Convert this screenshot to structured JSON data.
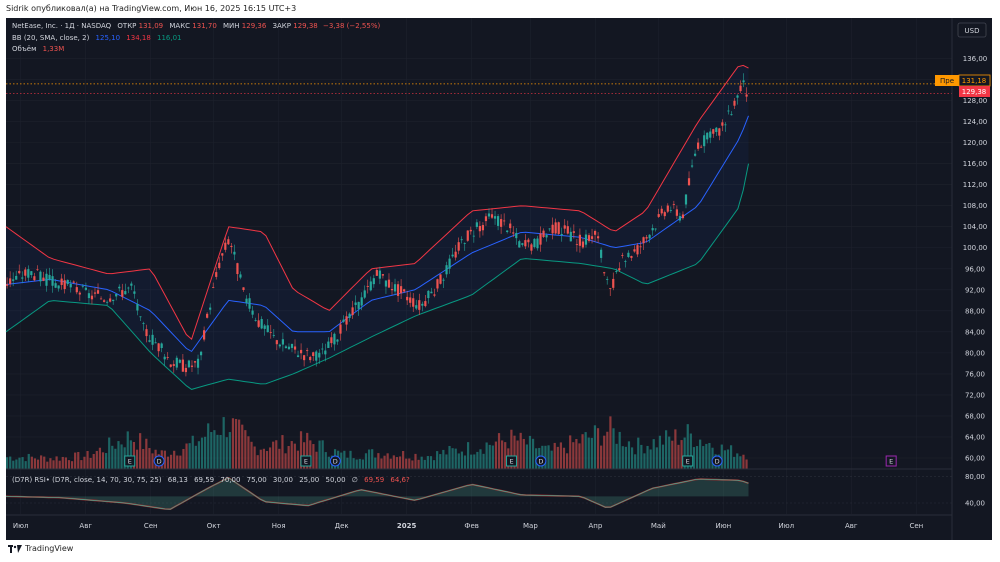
{
  "header": {
    "text": "Sidrik опубликовал(а) на TradingView.com, Июн 16, 2025 16:15 UTC+3"
  },
  "footer": {
    "brand": "TradingView"
  },
  "currency": "USD",
  "legend": {
    "symbol": "NetEase, Inc. · 1Д · NASDAQ",
    "open_label": "ОТКР",
    "open": "131,09",
    "high_label": "МАКС",
    "high": "131,70",
    "low_label": "МИН",
    "low": "129,36",
    "close_label": "ЗАКР",
    "close": "129,38",
    "change": "−3,38 (−2,55%)",
    "bb_label": "BB (20, SMA, close, 2)",
    "bb_basis": "125,10",
    "bb_upper": "134,18",
    "bb_lower": "116,01",
    "volume_label": "Объём",
    "volume": "1,33M",
    "rsi_label": "(D7R) RSI• (D7R, close, 14, 70, 30, 75, 25)",
    "rsi_values": [
      "68,13",
      "69,59",
      "70,00",
      "75,00",
      "30,00",
      "25,00",
      "50,00",
      "∅",
      "69,59",
      "64,6?"
    ]
  },
  "price_tags": {
    "pre_label": "Пре",
    "pre_price": "131,18",
    "last_price": "129,38"
  },
  "event_markers": [
    {
      "label": "E",
      "date": "2024-08-22"
    },
    {
      "label": "D",
      "date": "2024-09-05"
    },
    {
      "label": "E",
      "date": "2024-11-14"
    },
    {
      "label": "D",
      "date": "2024-11-28"
    },
    {
      "label": "E",
      "date": "2025-02-20"
    },
    {
      "label": "D",
      "date": "2025-03-06"
    },
    {
      "label": "E",
      "date": "2025-05-15"
    },
    {
      "label": "D",
      "date": "2025-05-29"
    },
    {
      "label": "E",
      "date": "2025-08-20"
    }
  ],
  "colors": {
    "background": "#131722",
    "up": "#26a69a",
    "down": "#ef5350",
    "bb_upper": "#f23645",
    "bb_basis": "#2962ff",
    "bb_lower": "#089981",
    "rsi_upper": "#4a9e8a",
    "rsi_lower": "#b02a2a",
    "pre_tag": "#ff9800",
    "last_tag": "#f23645"
  },
  "chart_data": {
    "type": "candlestick",
    "title": "NetEase, Inc. · 1Д · NASDAQ",
    "x_range": [
      "2024-06-24",
      "2025-09-18"
    ],
    "x_ticks": [
      {
        "label": "Июл",
        "date": "2024-07-01"
      },
      {
        "label": "Авг",
        "date": "2024-08-01"
      },
      {
        "label": "Сен",
        "date": "2024-09-01"
      },
      {
        "label": "Окт",
        "date": "2024-10-01"
      },
      {
        "label": "Ноя",
        "date": "2024-11-01"
      },
      {
        "label": "Дек",
        "date": "2024-12-01"
      },
      {
        "label": "2025",
        "date": "2025-01-01"
      },
      {
        "label": "Фев",
        "date": "2025-02-01"
      },
      {
        "label": "Мар",
        "date": "2025-03-01"
      },
      {
        "label": "Апр",
        "date": "2025-04-01"
      },
      {
        "label": "Май",
        "date": "2025-05-01"
      },
      {
        "label": "Июн",
        "date": "2025-06-01"
      },
      {
        "label": "Июл",
        "date": "2025-07-01"
      },
      {
        "label": "Авг",
        "date": "2025-08-01"
      },
      {
        "label": "Сен",
        "date": "2025-09-01"
      }
    ],
    "y_ticks": [
      "136,00",
      "132,00",
      "128,00",
      "124,00",
      "120,00",
      "116,00",
      "112,00",
      "108,00",
      "104,00",
      "100,00",
      "96,00",
      "92,00",
      "88,00",
      "84,00",
      "80,00",
      "76,00",
      "72,00",
      "68,00",
      "64,00",
      "60,00"
    ],
    "ylim": [
      60,
      138
    ],
    "price_points": [
      [
        "2024-06-24",
        93.5
      ],
      [
        "2024-07-05",
        95.5
      ],
      [
        "2024-07-12",
        94
      ],
      [
        "2024-07-19",
        93
      ],
      [
        "2024-07-26",
        92.5
      ],
      [
        "2024-08-02",
        91
      ],
      [
        "2024-08-09",
        90.5
      ],
      [
        "2024-08-16",
        91.5
      ],
      [
        "2024-08-23",
        92.5
      ],
      [
        "2024-08-27",
        85
      ],
      [
        "2024-09-03",
        82
      ],
      [
        "2024-09-10",
        78.5
      ],
      [
        "2024-09-17",
        77.5
      ],
      [
        "2024-09-24",
        78
      ],
      [
        "2024-09-27",
        86
      ],
      [
        "2024-10-03",
        97
      ],
      [
        "2024-10-08",
        102
      ],
      [
        "2024-10-15",
        91
      ],
      [
        "2024-10-22",
        86
      ],
      [
        "2024-10-29",
        83
      ],
      [
        "2024-11-05",
        81
      ],
      [
        "2024-11-12",
        80
      ],
      [
        "2024-11-19",
        79
      ],
      [
        "2024-11-26",
        82
      ],
      [
        "2024-12-03",
        86
      ],
      [
        "2024-12-10",
        90
      ],
      [
        "2024-12-17",
        95
      ],
      [
        "2024-12-24",
        93
      ],
      [
        "2024-12-31",
        91
      ],
      [
        "2025-01-07",
        89
      ],
      [
        "2025-01-14",
        92
      ],
      [
        "2025-01-21",
        97
      ],
      [
        "2025-01-28",
        102
      ],
      [
        "2025-02-04",
        104
      ],
      [
        "2025-02-11",
        106
      ],
      [
        "2025-02-18",
        104
      ],
      [
        "2025-02-25",
        100
      ],
      [
        "2025-03-04",
        101
      ],
      [
        "2025-03-11",
        104
      ],
      [
        "2025-03-18",
        103
      ],
      [
        "2025-03-25",
        101
      ],
      [
        "2025-04-01",
        103
      ],
      [
        "2025-04-07",
        91
      ],
      [
        "2025-04-14",
        98
      ],
      [
        "2025-04-21",
        100
      ],
      [
        "2025-04-28",
        104
      ],
      [
        "2025-05-05",
        108
      ],
      [
        "2025-05-12",
        106
      ],
      [
        "2025-05-19",
        120
      ],
      [
        "2025-05-26",
        121
      ],
      [
        "2025-06-02",
        124
      ],
      [
        "2025-06-09",
        131
      ],
      [
        "2025-06-13",
        129.38
      ]
    ],
    "bb_upper_points": [
      [
        "2024-06-24",
        104
      ],
      [
        "2024-07-15",
        98
      ],
      [
        "2024-08-12",
        95
      ],
      [
        "2024-09-01",
        96
      ],
      [
        "2024-09-20",
        82
      ],
      [
        "2024-10-08",
        104
      ],
      [
        "2024-10-25",
        103
      ],
      [
        "2024-11-08",
        92
      ],
      [
        "2024-11-25",
        88
      ],
      [
        "2024-12-15",
        96
      ],
      [
        "2025-01-05",
        97
      ],
      [
        "2025-02-01",
        107
      ],
      [
        "2025-02-25",
        108
      ],
      [
        "2025-03-25",
        107
      ],
      [
        "2025-04-10",
        103
      ],
      [
        "2025-04-25",
        107
      ],
      [
        "2025-05-20",
        124
      ],
      [
        "2025-06-09",
        135
      ],
      [
        "2025-06-13",
        134.18
      ]
    ],
    "bb_basis_points": [
      [
        "2024-06-24",
        93
      ],
      [
        "2024-07-15",
        94
      ],
      [
        "2024-08-12",
        92
      ],
      [
        "2024-09-01",
        88
      ],
      [
        "2024-09-20",
        80
      ],
      [
        "2024-10-08",
        90
      ],
      [
        "2024-10-25",
        89
      ],
      [
        "2024-11-08",
        84
      ],
      [
        "2024-11-25",
        84
      ],
      [
        "2024-12-15",
        90
      ],
      [
        "2025-01-05",
        92
      ],
      [
        "2025-02-01",
        99
      ],
      [
        "2025-02-25",
        103
      ],
      [
        "2025-03-25",
        102
      ],
      [
        "2025-04-10",
        100
      ],
      [
        "2025-04-25",
        101
      ],
      [
        "2025-05-20",
        108
      ],
      [
        "2025-06-09",
        121
      ],
      [
        "2025-06-13",
        125.1
      ]
    ],
    "bb_lower_points": [
      [
        "2024-06-24",
        84
      ],
      [
        "2024-07-15",
        90
      ],
      [
        "2024-08-12",
        89
      ],
      [
        "2024-09-01",
        80
      ],
      [
        "2024-09-20",
        73
      ],
      [
        "2024-10-08",
        75
      ],
      [
        "2024-10-25",
        74
      ],
      [
        "2024-11-08",
        76
      ],
      [
        "2024-11-25",
        79
      ],
      [
        "2024-12-15",
        83
      ],
      [
        "2025-01-05",
        87
      ],
      [
        "2025-02-01",
        91
      ],
      [
        "2025-02-25",
        98
      ],
      [
        "2025-03-25",
        97
      ],
      [
        "2025-04-10",
        96
      ],
      [
        "2025-04-25",
        93
      ],
      [
        "2025-05-20",
        97
      ],
      [
        "2025-06-09",
        108
      ],
      [
        "2025-06-13",
        116.01
      ]
    ],
    "volume_millions": [
      [
        "2024-07-01",
        1.1
      ],
      [
        "2024-07-15",
        1.0
      ],
      [
        "2024-08-01",
        1.2
      ],
      [
        "2024-08-22",
        3.0
      ],
      [
        "2024-09-05",
        1.4
      ],
      [
        "2024-09-20",
        2.2
      ],
      [
        "2024-10-01",
        3.8
      ],
      [
        "2024-10-08",
        4.2
      ],
      [
        "2024-10-20",
        2.0
      ],
      [
        "2024-11-14",
        2.6
      ],
      [
        "2024-12-01",
        1.3
      ],
      [
        "2024-12-20",
        1.5
      ],
      [
        "2025-01-10",
        1.2
      ],
      [
        "2025-02-01",
        2.0
      ],
      [
        "2025-02-20",
        2.8
      ],
      [
        "2025-03-10",
        1.6
      ],
      [
        "2025-04-07",
        3.6
      ],
      [
        "2025-04-20",
        2.1
      ],
      [
        "2025-05-15",
        3.2
      ],
      [
        "2025-06-01",
        1.8
      ],
      [
        "2025-06-13",
        1.33
      ]
    ],
    "rsi_ticks": [
      "80,00",
      "40,00"
    ],
    "rsi_points": [
      [
        "2024-06-24",
        50
      ],
      [
        "2024-07-20",
        48
      ],
      [
        "2024-08-20",
        40
      ],
      [
        "2024-09-10",
        30
      ],
      [
        "2024-09-27",
        60
      ],
      [
        "2024-10-08",
        78
      ],
      [
        "2024-10-25",
        42
      ],
      [
        "2024-11-15",
        36
      ],
      [
        "2024-12-10",
        60
      ],
      [
        "2025-01-05",
        44
      ],
      [
        "2025-02-01",
        68
      ],
      [
        "2025-02-25",
        52
      ],
      [
        "2025-03-25",
        50
      ],
      [
        "2025-04-07",
        32
      ],
      [
        "2025-04-28",
        62
      ],
      [
        "2025-05-20",
        76
      ],
      [
        "2025-06-09",
        74
      ],
      [
        "2025-06-13",
        69.59
      ]
    ]
  }
}
